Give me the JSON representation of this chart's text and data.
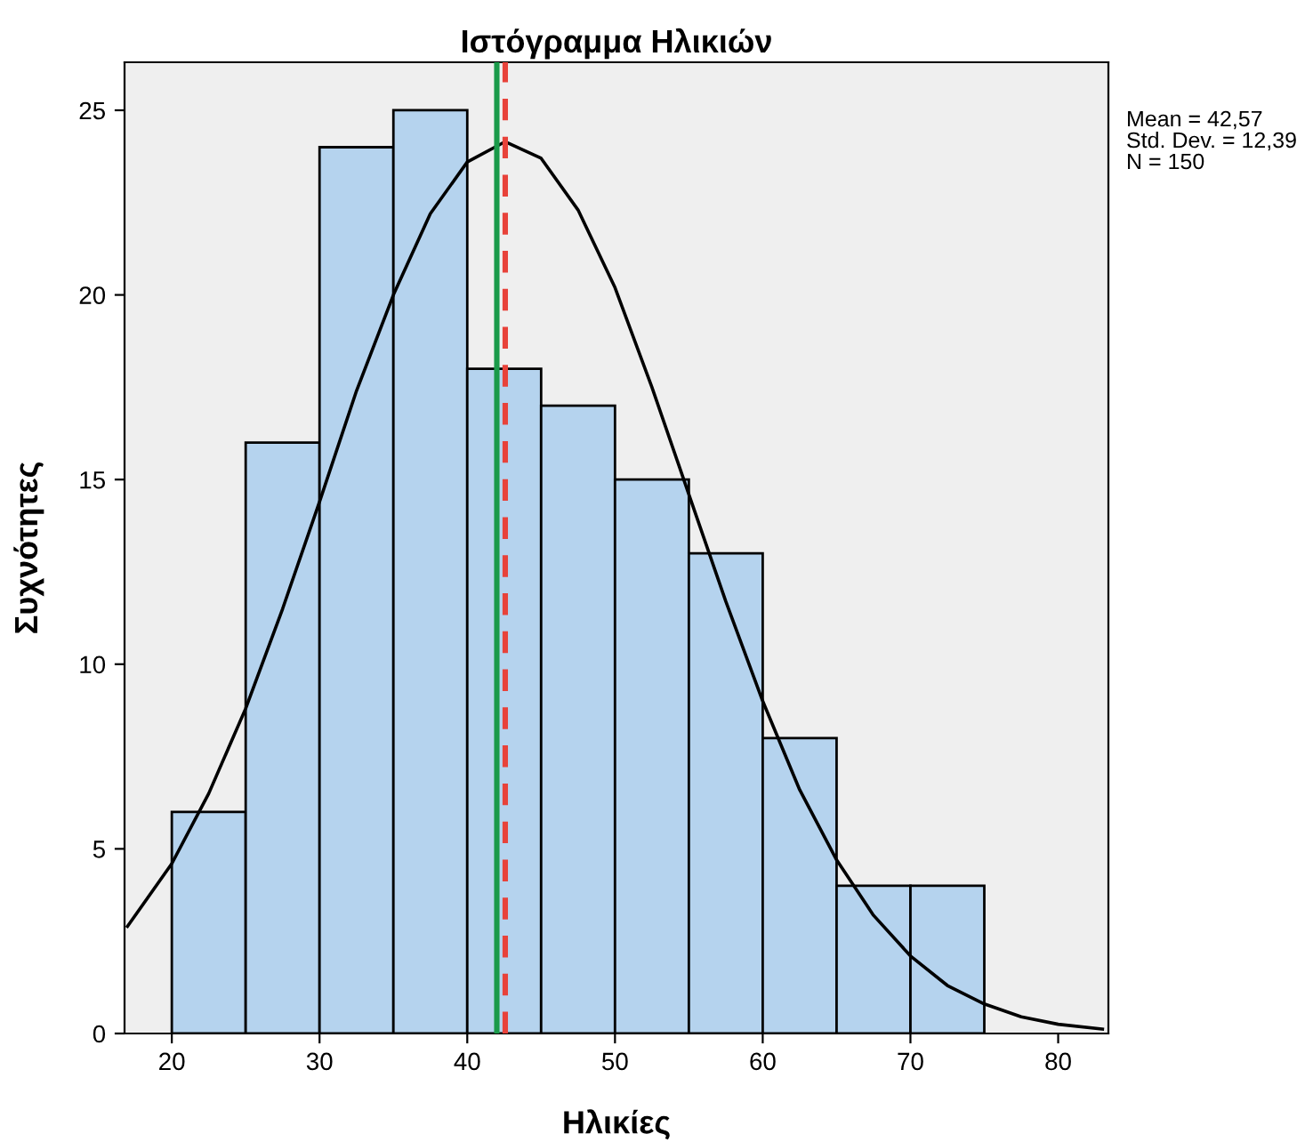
{
  "chart_data": {
    "type": "histogram",
    "title": "Ιστόγραμμα Ηλικιών",
    "xlabel": "Ηλικίες",
    "ylabel": "Συχνότητες",
    "bins": [
      20,
      25,
      30,
      35,
      40,
      45,
      50,
      55,
      60,
      65,
      70,
      75
    ],
    "values": [
      6,
      16,
      24,
      25,
      18,
      17,
      15,
      13,
      8,
      4,
      4
    ],
    "color": "#b5d3ee",
    "series": [
      {
        "type": "line",
        "color": "#000000",
        "x": [
          17,
          20,
          22.5,
          25,
          27.5,
          30,
          32.5,
          35,
          37.5,
          40,
          42.57,
          45,
          47.5,
          50,
          52.5,
          55,
          57.5,
          60,
          62.5,
          65,
          67.5,
          70,
          72.5,
          75,
          77.5,
          80,
          83
        ],
        "values": [
          2.9,
          4.6,
          6.5,
          8.8,
          11.5,
          14.4,
          17.4,
          20.0,
          22.2,
          23.6,
          24.15,
          23.7,
          22.3,
          20.2,
          17.5,
          14.6,
          11.7,
          9.0,
          6.6,
          4.7,
          3.2,
          2.1,
          1.3,
          0.8,
          0.45,
          0.25,
          0.12
        ]
      }
    ],
    "ref_lines": [
      {
        "axis": "x",
        "value": 42,
        "color": "#1a9a4a",
        "line_style": "solid"
      },
      {
        "axis": "x",
        "value": 42.57,
        "color": "#e8423a",
        "line_style": "dashed"
      }
    ],
    "annotations": [
      "Mean = 42,57",
      "Std. Dev. = 12,39",
      "N = 150"
    ],
    "xlim": [
      16.8,
      83.4
    ],
    "ylim": [
      0,
      26.3
    ],
    "xticks": [
      20,
      30,
      40,
      50,
      60,
      70,
      80
    ],
    "yticks": [
      0,
      5,
      10,
      15,
      20,
      25
    ],
    "grid": false,
    "legend": false
  }
}
